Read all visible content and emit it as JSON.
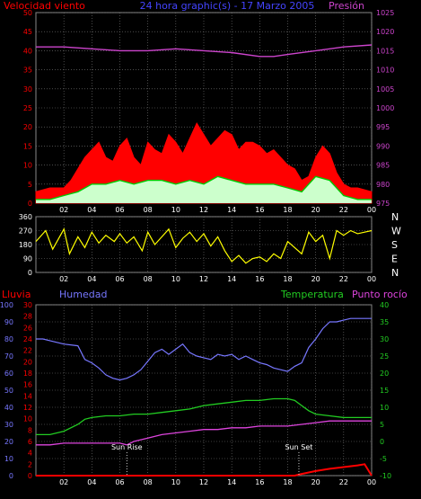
{
  "header": {
    "wind_label": "Velocidad viento",
    "title": "24 hora graphic(s) - 17 Marzo 2005",
    "pressure_label": "Presión"
  },
  "lower_header": {
    "rain_label": "Lluvia",
    "humidity_label": "Humedad",
    "temperature_label": "Temperatura",
    "dewpoint_label": "Punto rocío"
  },
  "compass_labels": [
    "N",
    "W",
    "S",
    "E",
    "N"
  ],
  "colors": {
    "background": "#000000",
    "grid": "#7a7a7a",
    "wind_gust": "#ff0000",
    "wind_avg": "#00cc00",
    "wind_fill": "#ccffcc",
    "pressure": "#cc44cc",
    "direction": "#ffff00",
    "humidity": "#7777ff",
    "temperature": "#22cc22",
    "dewpoint": "#dd44dd",
    "rain": "#ff0000",
    "sun_marker": "#ffffff",
    "axis_left_red": "#ff0000",
    "axis_right_magenta": "#cc44cc"
  },
  "chart_data": [
    {
      "type": "area",
      "name": "wind-pressure",
      "x_ticks": [
        "02",
        "04",
        "06",
        "08",
        "10",
        "12",
        "14",
        "16",
        "18",
        "20",
        "22",
        "00"
      ],
      "y_left_ticks": [
        "0",
        "5",
        "10",
        "15",
        "20",
        "25",
        "30",
        "35",
        "40",
        "45",
        "50"
      ],
      "y_left_range": [
        0,
        50
      ],
      "y_right_ticks": [
        "975",
        "980",
        "985",
        "990",
        "995",
        "1000",
        "1005",
        "1010",
        "1015",
        "1020",
        "1025"
      ],
      "y_right_range": [
        975,
        1025
      ],
      "hours_range": [
        0,
        24
      ],
      "series": [
        {
          "name": "Velocidad viento",
          "x": [
            0,
            1,
            2,
            2.5,
            3,
            3.5,
            4,
            4.5,
            5,
            5.5,
            6,
            6.5,
            7,
            7.5,
            8,
            8.5,
            9,
            9.5,
            10,
            10.5,
            11,
            11.5,
            12,
            12.5,
            13,
            13.5,
            14,
            14.5,
            15,
            15.5,
            16,
            16.5,
            17,
            17.5,
            18,
            18.5,
            19,
            19.5,
            20,
            20.5,
            21,
            21.5,
            22,
            22.5,
            23,
            24
          ],
          "values": [
            3,
            4,
            4,
            6,
            9,
            12,
            14,
            16,
            12,
            11,
            15,
            17,
            12,
            10,
            16,
            14,
            13,
            18,
            16,
            13,
            17,
            21,
            18,
            15,
            17,
            19,
            18,
            14,
            16,
            16,
            15,
            13,
            14,
            12,
            10,
            9,
            6,
            7,
            12,
            15,
            13,
            8,
            5,
            4,
            4,
            3
          ]
        },
        {
          "name": "average",
          "x": [
            0,
            1,
            2,
            3,
            4,
            5,
            6,
            7,
            8,
            9,
            10,
            11,
            12,
            13,
            14,
            15,
            16,
            17,
            18,
            19,
            20,
            21,
            22,
            23,
            24
          ],
          "values": [
            1,
            1,
            2,
            3,
            5,
            5,
            6,
            5,
            6,
            6,
            5,
            6,
            5,
            7,
            6,
            5,
            5,
            5,
            4,
            3,
            7,
            6,
            2,
            1,
            1
          ]
        },
        {
          "name": "Presión",
          "x": [
            0,
            2,
            4,
            6,
            8,
            10,
            12,
            14,
            16,
            17,
            18,
            20,
            22,
            24
          ],
          "values": [
            1016,
            1016,
            1015.5,
            1015,
            1015,
            1015.5,
            1015,
            1014.5,
            1013.5,
            1013.5,
            1014,
            1015,
            1016,
            1016.5
          ]
        }
      ]
    },
    {
      "type": "line",
      "name": "wind-direction",
      "x_ticks": [
        "02",
        "04",
        "06",
        "08",
        "10",
        "12",
        "14",
        "16",
        "18",
        "20",
        "22",
        "00"
      ],
      "y_ticks": [
        "0",
        "90",
        "180",
        "270",
        "360"
      ],
      "y_range": [
        0,
        360
      ],
      "hours_range": [
        0,
        24
      ],
      "series": [
        {
          "name": "direction",
          "x": [
            0,
            0.7,
            1.2,
            2,
            2.4,
            3,
            3.5,
            4,
            4.5,
            5,
            5.6,
            6,
            6.5,
            7,
            7.6,
            8,
            8.5,
            9,
            9.5,
            10,
            10.5,
            11,
            11.5,
            12,
            12.5,
            13,
            13.5,
            14,
            14.5,
            15,
            15.5,
            16,
            16.5,
            17,
            17.5,
            18,
            18.5,
            19,
            19.5,
            20,
            20.5,
            21,
            21.5,
            22,
            22.5,
            23,
            23.5,
            24
          ],
          "values": [
            200,
            270,
            150,
            280,
            120,
            230,
            160,
            260,
            190,
            240,
            200,
            250,
            190,
            230,
            140,
            260,
            180,
            230,
            280,
            160,
            220,
            260,
            200,
            250,
            170,
            230,
            140,
            70,
            110,
            60,
            90,
            100,
            70,
            120,
            90,
            200,
            160,
            120,
            260,
            200,
            240,
            90,
            270,
            240,
            270,
            250,
            260,
            270
          ]
        }
      ]
    },
    {
      "type": "line",
      "name": "humidity-temperature",
      "x_ticks": [
        "02",
        "04",
        "06",
        "08",
        "10",
        "12",
        "14",
        "16",
        "18",
        "20",
        "22",
        "00"
      ],
      "y_humidity_ticks": [
        "0",
        "10",
        "20",
        "30",
        "40",
        "50",
        "60",
        "70",
        "80",
        "90",
        "100"
      ],
      "humidity_range": [
        0,
        100
      ],
      "y_rain_ticks": [
        "0",
        "2",
        "4",
        "6",
        "8",
        "10",
        "12",
        "14",
        "16",
        "18",
        "20",
        "22",
        "24",
        "26",
        "28",
        "30"
      ],
      "rain_range": [
        0,
        30
      ],
      "y_temp_ticks": [
        "-10",
        "-5",
        "0",
        "5",
        "10",
        "15",
        "20",
        "25",
        "30",
        "35",
        "40"
      ],
      "temp_range": [
        -10,
        40
      ],
      "hours_range": [
        0,
        24
      ],
      "annotations": [
        "Sun Rise",
        "Sun Set"
      ],
      "annotation_hours": [
        6.5,
        18.8
      ],
      "series": [
        {
          "name": "Humedad",
          "x": [
            0,
            0.5,
            1,
            2,
            3,
            3.5,
            4,
            4.5,
            5,
            5.5,
            6,
            6.5,
            7,
            7.5,
            8,
            8.5,
            9,
            9.5,
            10,
            10.5,
            11,
            11.5,
            12,
            12.5,
            13,
            13.5,
            14,
            14.5,
            15,
            15.5,
            16,
            16.5,
            17,
            17.5,
            18,
            18.5,
            19,
            19.5,
            20,
            20.5,
            21,
            21.5,
            22,
            22.5,
            23,
            23.5,
            24
          ],
          "values": [
            80,
            80,
            79,
            77,
            76,
            68,
            66,
            63,
            59,
            57,
            56,
            57,
            59,
            62,
            67,
            72,
            74,
            71,
            74,
            77,
            72,
            70,
            69,
            68,
            71,
            70,
            71,
            68,
            70,
            68,
            66,
            65,
            63,
            62,
            61,
            64,
            66,
            75,
            80,
            86,
            90,
            90,
            91,
            92,
            92,
            92,
            92
          ]
        },
        {
          "name": "Temperatura",
          "x": [
            0,
            1,
            2,
            3,
            3.5,
            4,
            5,
            6,
            7,
            8,
            9,
            10,
            11,
            12,
            13,
            14,
            15,
            16,
            17,
            18,
            18.5,
            19,
            19.5,
            20,
            21,
            22,
            23,
            24
          ],
          "values": [
            2,
            2,
            3,
            5,
            6.5,
            7,
            7.5,
            7.5,
            8,
            8,
            8.5,
            9,
            9.5,
            10.5,
            11,
            11.5,
            12,
            12,
            12.5,
            12.5,
            12,
            10.5,
            9,
            8,
            7.5,
            7,
            7,
            7
          ]
        },
        {
          "name": "Punto rocío",
          "x": [
            0,
            1,
            2,
            3,
            4,
            5,
            6,
            6.5,
            7,
            8,
            9,
            10,
            11,
            12,
            13,
            14,
            15,
            16,
            17,
            18,
            19,
            20,
            21,
            22,
            23,
            24
          ],
          "values": [
            -1,
            -1,
            -0.5,
            -0.5,
            -0.5,
            -0.5,
            -0.5,
            -1,
            0,
            1,
            2,
            2.5,
            3,
            3.5,
            3.5,
            4,
            4,
            4.5,
            4.5,
            4.5,
            5,
            5.5,
            6,
            6,
            6,
            6
          ]
        },
        {
          "name": "Lluvia",
          "x": [
            0,
            18.5,
            19,
            20,
            21,
            22,
            23,
            23.5,
            24
          ],
          "values": [
            0,
            0,
            0.3,
            0.8,
            1.2,
            1.5,
            1.8,
            2,
            0
          ]
        }
      ]
    }
  ]
}
